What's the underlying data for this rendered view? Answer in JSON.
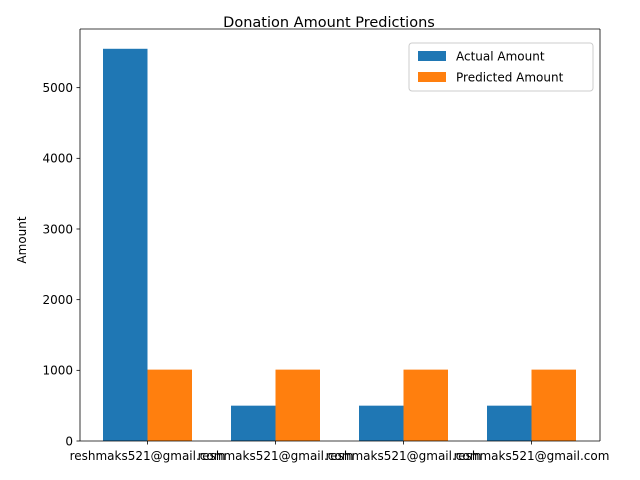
{
  "chart_data": {
    "type": "bar",
    "title": "Donation Amount Predictions",
    "xlabel": "",
    "ylabel": "Amount",
    "categories": [
      "reshmaks521@gmail.com",
      "reshmaks521@gmail.com",
      "reshmaks521@gmail.com",
      "reshmaks521@gmail.com"
    ],
    "series": [
      {
        "name": "Actual Amount",
        "color": "#1f77b4",
        "values": [
          5550,
          500,
          500,
          500
        ]
      },
      {
        "name": "Predicted Amount",
        "color": "#ff7f0e",
        "values": [
          1010,
          1010,
          1010,
          1010
        ]
      }
    ],
    "ylim": [
      0,
      5830
    ],
    "yticks": [
      0,
      1000,
      2000,
      3000,
      4000,
      5000
    ],
    "grid": false,
    "legend_position": "top-right"
  }
}
